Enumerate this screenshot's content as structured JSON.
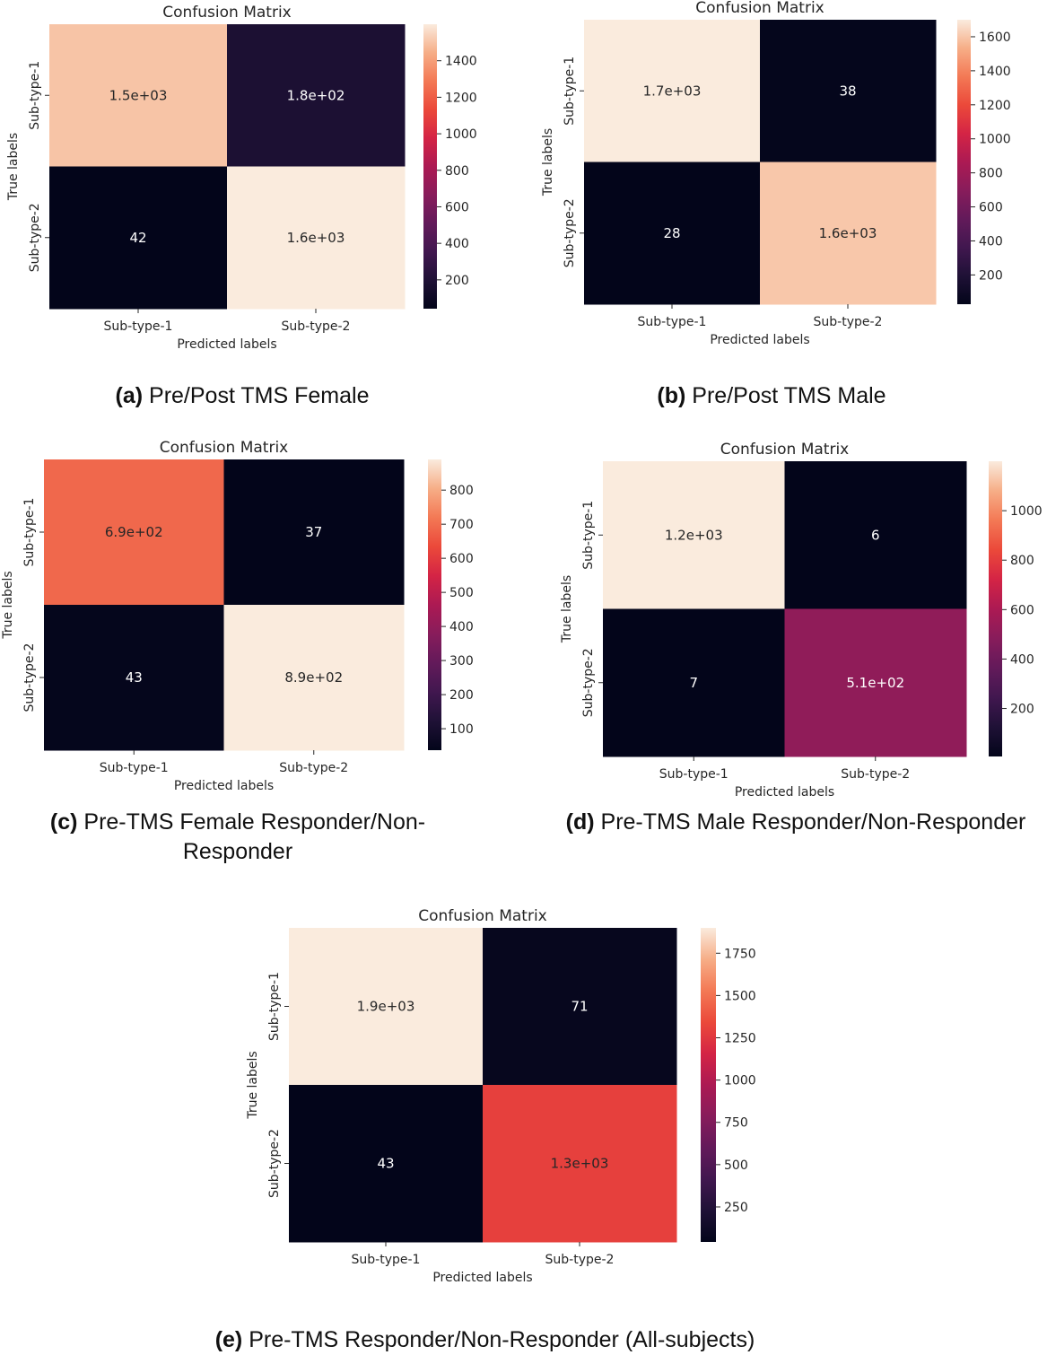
{
  "chart_data": [
    {
      "type": "heatmap",
      "title": "Confusion Matrix",
      "xlabel": "Predicted labels",
      "ylabel": "True labels",
      "x_categories": [
        "Sub-type-1",
        "Sub-type-2"
      ],
      "y_categories": [
        "Sub-type-1",
        "Sub-type-2"
      ],
      "values": [
        [
          1500,
          180
        ],
        [
          42,
          1600
        ]
      ],
      "cell_labels": [
        [
          "1.5e+03",
          "1.8e+02"
        ],
        [
          "42",
          "1.6e+03"
        ]
      ],
      "colorbar": {
        "min": 42,
        "max": 1600,
        "ticks": [
          200,
          400,
          600,
          800,
          1000,
          1200,
          1400
        ]
      },
      "colormap": "rocket",
      "caption": {
        "letter": "(a)",
        "text": "Pre/Post TMS Female"
      }
    },
    {
      "type": "heatmap",
      "title": "Confusion Matrix",
      "xlabel": "Predicted labels",
      "ylabel": "True labels",
      "x_categories": [
        "Sub-type-1",
        "Sub-type-2"
      ],
      "y_categories": [
        "Sub-type-1",
        "Sub-type-2"
      ],
      "values": [
        [
          1700,
          38
        ],
        [
          28,
          1600
        ]
      ],
      "cell_labels": [
        [
          "1.7e+03",
          "38"
        ],
        [
          "28",
          "1.6e+03"
        ]
      ],
      "colorbar": {
        "min": 28,
        "max": 1700,
        "ticks": [
          200,
          400,
          600,
          800,
          1000,
          1200,
          1400,
          1600
        ]
      },
      "colormap": "rocket",
      "caption": {
        "letter": "(b)",
        "text": "Pre/Post TMS Male"
      }
    },
    {
      "type": "heatmap",
      "title": "Confusion Matrix",
      "xlabel": "Predicted labels",
      "ylabel": "True labels",
      "x_categories": [
        "Sub-type-1",
        "Sub-type-2"
      ],
      "y_categories": [
        "Sub-type-1",
        "Sub-type-2"
      ],
      "values": [
        [
          690,
          37
        ],
        [
          43,
          890
        ]
      ],
      "cell_labels": [
        [
          "6.9e+02",
          "37"
        ],
        [
          "43",
          "8.9e+02"
        ]
      ],
      "colorbar": {
        "min": 37,
        "max": 890,
        "ticks": [
          100,
          200,
          300,
          400,
          500,
          600,
          700,
          800
        ]
      },
      "colormap": "rocket",
      "caption": {
        "letter": "(c)",
        "text": "Pre-TMS Female Responder/Non-Responder"
      }
    },
    {
      "type": "heatmap",
      "title": "Confusion Matrix",
      "xlabel": "Predicted labels",
      "ylabel": "True labels",
      "x_categories": [
        "Sub-type-1",
        "Sub-type-2"
      ],
      "y_categories": [
        "Sub-type-1",
        "Sub-type-2"
      ],
      "values": [
        [
          1200,
          6
        ],
        [
          7,
          510
        ]
      ],
      "cell_labels": [
        [
          "1.2e+03",
          "6"
        ],
        [
          "7",
          "5.1e+02"
        ]
      ],
      "colorbar": {
        "min": 6,
        "max": 1200,
        "ticks": [
          200,
          400,
          600,
          800,
          1000
        ]
      },
      "colormap": "rocket",
      "caption": {
        "letter": "(d)",
        "text": "Pre-TMS Male Responder/Non-Responder"
      }
    },
    {
      "type": "heatmap",
      "title": "Confusion Matrix",
      "xlabel": "Predicted labels",
      "ylabel": "True labels",
      "x_categories": [
        "Sub-type-1",
        "Sub-type-2"
      ],
      "y_categories": [
        "Sub-type-1",
        "Sub-type-2"
      ],
      "values": [
        [
          1900,
          71
        ],
        [
          43,
          1300
        ]
      ],
      "cell_labels": [
        [
          "1.9e+03",
          "71"
        ],
        [
          "43",
          "1.3e+03"
        ]
      ],
      "colorbar": {
        "min": 43,
        "max": 1900,
        "ticks": [
          250,
          500,
          750,
          1000,
          1250,
          1500,
          1750
        ]
      },
      "colormap": "rocket",
      "caption": {
        "letter": "(e)",
        "text": "Pre-TMS Responder/Non-Responder (All-subjects)"
      }
    }
  ]
}
